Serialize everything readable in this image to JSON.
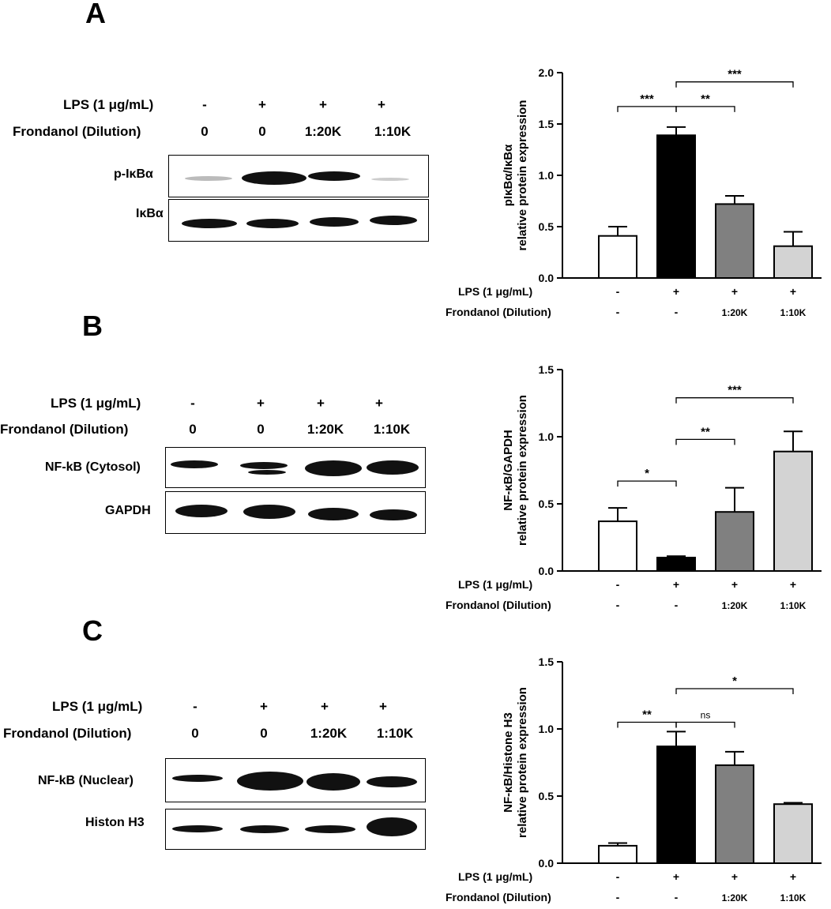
{
  "panels": [
    {
      "letter": "A",
      "blot": {
        "lps_label": "LPS (1 μg/mL)",
        "frond_label": "Frondanol (Dilution)",
        "lps_values": [
          "-",
          "+",
          "+",
          "+"
        ],
        "frond_values": [
          "0",
          "0",
          "1:20K",
          "1:10K"
        ],
        "rows": [
          "p-IκBα",
          "IκBα"
        ]
      }
    },
    {
      "letter": "B",
      "blot": {
        "lps_label": "LPS (1 μg/mL)",
        "frond_label": "Frondanol (Dilution)",
        "lps_values": [
          "-",
          "+",
          "+",
          "+"
        ],
        "frond_values": [
          "0",
          "0",
          "1:20K",
          "1:10K"
        ],
        "rows": [
          "NF-kB (Cytosol)",
          "GAPDH"
        ]
      }
    },
    {
      "letter": "C",
      "blot": {
        "lps_label": "LPS (1 μg/mL)",
        "frond_label": "Frondanol (Dilution)",
        "lps_values": [
          "-",
          "+",
          "+",
          "+"
        ],
        "frond_values": [
          "0",
          "0",
          "1:20K",
          "1:10K"
        ],
        "rows": [
          "NF-kB (Nuclear)",
          "Histon H3"
        ]
      }
    }
  ],
  "chart_data": [
    {
      "type": "bar",
      "ylabel_line1": "pIκBα/IκBα",
      "ylabel_line2": "relative protein expression",
      "ylim": [
        0,
        2.0
      ],
      "yticks": [
        "0.0",
        "0.5",
        "1.0",
        "1.5",
        "2.0"
      ],
      "ytick_values": [
        0,
        0.5,
        1.0,
        1.5,
        2.0
      ],
      "values": [
        0.41,
        1.39,
        0.72,
        0.31
      ],
      "errors": [
        0.09,
        0.08,
        0.08,
        0.14
      ],
      "bar_colors": [
        "#ffffff",
        "#000000",
        "#808080",
        "#d3d3d3"
      ],
      "lps_label": "LPS (1 μg/mL)",
      "frond_label": "Frondanol (Dilution)",
      "lps_values": [
        "-",
        "+",
        "+",
        "+"
      ],
      "frond_values": [
        "-",
        "-",
        "1:20K",
        "1:10K"
      ],
      "significance": [
        {
          "from": 0,
          "to": 1,
          "label": "***",
          "y": 1.67
        },
        {
          "from": 1,
          "to": 2,
          "label": "**",
          "y": 1.67
        },
        {
          "from": 1,
          "to": 3,
          "label": "***",
          "y": 1.91
        }
      ]
    },
    {
      "type": "bar",
      "ylabel_line1": "NF-κB/GAPDH",
      "ylabel_line2": "relative protein expression",
      "ylim": [
        0,
        1.5
      ],
      "yticks": [
        "0.0",
        "0.5",
        "1.0",
        "1.5"
      ],
      "ytick_values": [
        0,
        0.5,
        1.0,
        1.5
      ],
      "values": [
        0.37,
        0.1,
        0.44,
        0.89
      ],
      "errors": [
        0.1,
        0.01,
        0.18,
        0.15
      ],
      "bar_colors": [
        "#ffffff",
        "#000000",
        "#808080",
        "#d3d3d3"
      ],
      "lps_label": "LPS (1 μg/mL)",
      "frond_label": "Frondanol (Dilution)",
      "lps_values": [
        "-",
        "+",
        "+",
        "+"
      ],
      "frond_values": [
        "-",
        "-",
        "1:20K",
        "1:10K"
      ],
      "significance": [
        {
          "from": 0,
          "to": 1,
          "label": "*",
          "y": 0.67
        },
        {
          "from": 1,
          "to": 2,
          "label": "**",
          "y": 0.98
        },
        {
          "from": 1,
          "to": 3,
          "label": "***",
          "y": 1.29
        }
      ]
    },
    {
      "type": "bar",
      "ylabel_line1": "NF-κB/Histone H3",
      "ylabel_line2": "relative protein expression",
      "ylim": [
        0,
        1.5
      ],
      "yticks": [
        "0.0",
        "0.5",
        "1.0",
        "1.5"
      ],
      "ytick_values": [
        0,
        0.5,
        1.0,
        1.5
      ],
      "values": [
        0.13,
        0.87,
        0.73,
        0.44
      ],
      "errors": [
        0.02,
        0.11,
        0.1,
        0.01
      ],
      "bar_colors": [
        "#ffffff",
        "#000000",
        "#808080",
        "#d3d3d3"
      ],
      "lps_label": "LPS (1 μg/mL)",
      "frond_label": "Frondanol (Dilution)",
      "lps_values": [
        "-",
        "+",
        "+",
        "+"
      ],
      "frond_values": [
        "-",
        "-",
        "1:20K",
        "1:10K"
      ],
      "significance": [
        {
          "from": 0,
          "to": 1,
          "label": "**",
          "y": 1.05
        },
        {
          "from": 1,
          "to": 2,
          "label": "ns",
          "y": 1.05
        },
        {
          "from": 1,
          "to": 3,
          "label": "*",
          "y": 1.3
        }
      ]
    }
  ]
}
